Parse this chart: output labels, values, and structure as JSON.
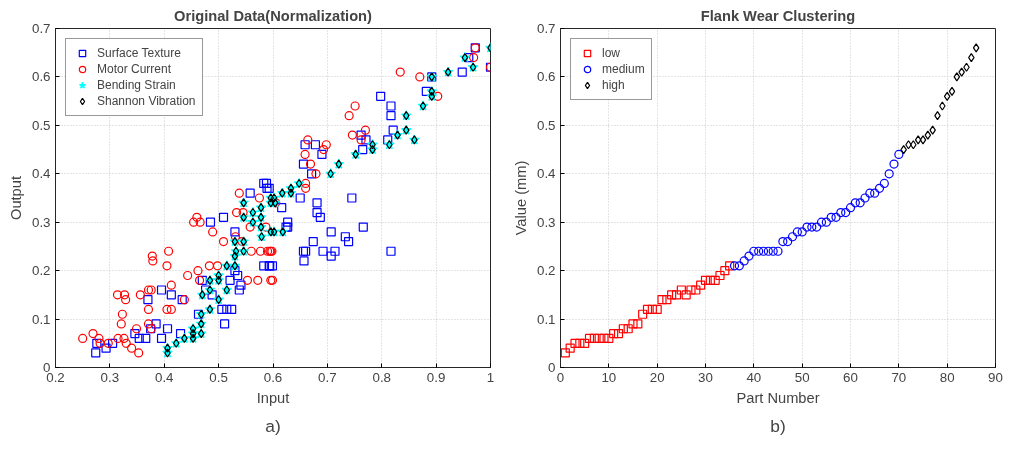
{
  "chart_data": [
    {
      "type": "scatter",
      "title": "Original Data(Normalization)",
      "xlabel": "Input",
      "ylabel": "Output",
      "annotations": [
        "a)"
      ],
      "xlim": [
        0.2,
        1
      ],
      "ylim": [
        0,
        0.7
      ],
      "xticks": [
        0.2,
        0.3,
        0.4,
        0.5,
        0.6,
        0.7,
        0.8,
        0.9,
        1
      ],
      "yticks": [
        0,
        0.1,
        0.2,
        0.3,
        0.4,
        0.5,
        0.6,
        0.7
      ],
      "grid": true,
      "legend": "top left",
      "series": [
        {
          "name": "Surface Texture",
          "color": "#0000ff",
          "marker": "square",
          "x": [
            0.274,
            0.276,
            0.293,
            0.305,
            0.346,
            0.354,
            0.366,
            0.37,
            0.385,
            0.375,
            0.395,
            0.395,
            0.406,
            0.413,
            0.43,
            0.433,
            0.463,
            0.47,
            0.476,
            0.485,
            0.488,
            0.509,
            0.506,
            0.515,
            0.524,
            0.511,
            0.521,
            0.535,
            0.538,
            0.541,
            0.53,
            0.53,
            0.558,
            0.583,
            0.589,
            0.583,
            0.594,
            0.588,
            0.593,
            0.616,
            0.627,
            0.627,
            0.624,
            0.599,
            0.593,
            0.659,
            0.678,
            0.656,
            0.671,
            0.69,
            0.65,
            0.681,
            0.681,
            0.687,
            0.707,
            0.674,
            0.656,
            0.66,
            0.657,
            0.692,
            0.707,
            0.714,
            0.733,
            0.739,
            0.745,
            0.766,
            0.762,
            0.771,
            0.765,
            0.798,
            0.817,
            0.817,
            0.821,
            0.811,
            0.817,
            0.882,
            0.892,
            0.948,
            0.972,
            0.96,
            1.0
          ],
          "values": [
            0.03,
            0.05,
            0.04,
            0.05,
            0.07,
            0.06,
            0.06,
            0.14,
            0.09,
            0.08,
            0.06,
            0.16,
            0.08,
            0.15,
            0.07,
            0.14,
            0.11,
            0.18,
            0.16,
            0.3,
            0.15,
            0.31,
            0.12,
            0.12,
            0.12,
            0.09,
            0.18,
            0.19,
            0.16,
            0.17,
            0.28,
            0.2,
            0.36,
            0.38,
            0.37,
            0.21,
            0.21,
            0.38,
            0.37,
            0.33,
            0.3,
            0.29,
            0.29,
            0.21,
            0.21,
            0.46,
            0.46,
            0.42,
            0.4,
            0.44,
            0.35,
            0.34,
            0.32,
            0.31,
            0.28,
            0.26,
            0.24,
            0.24,
            0.22,
            0.24,
            0.23,
            0.24,
            0.27,
            0.26,
            0.35,
            0.29,
            0.48,
            0.47,
            0.45,
            0.56,
            0.54,
            0.52,
            0.49,
            0.47,
            0.24,
            0.57,
            0.6,
            0.61,
            0.66,
            0.64,
            0.62
          ]
        },
        {
          "name": "Motor Current",
          "color": "#ff0000",
          "marker": "circle",
          "x": [
            0.25,
            0.269,
            0.28,
            0.282,
            0.297,
            0.315,
            0.314,
            0.327,
            0.329,
            0.323,
            0.321,
            0.326,
            0.33,
            0.34,
            0.349,
            0.353,
            0.356,
            0.371,
            0.376,
            0.371,
            0.371,
            0.376,
            0.378,
            0.379,
            0.405,
            0.408,
            0.413,
            0.405,
            0.413,
            0.437,
            0.443,
            0.454,
            0.46,
            0.466,
            0.462,
            0.465,
            0.483,
            0.498,
            0.489,
            0.509,
            0.531,
            0.538,
            0.533,
            0.545,
            0.553,
            0.543,
            0.56,
            0.577,
            0.59,
            0.596,
            0.572,
            0.596,
            0.575,
            0.558,
            0.587,
            0.599,
            0.594,
            0.598,
            0.605,
            0.66,
            0.66,
            0.664,
            0.659,
            0.669,
            0.679,
            0.693,
            0.698,
            0.74,
            0.751,
            0.746,
            0.762,
            0.77,
            0.834,
            0.87,
            0.903,
            0.969,
            0.972,
            1.0
          ],
          "values": [
            0.06,
            0.07,
            0.06,
            0.05,
            0.05,
            0.06,
            0.15,
            0.15,
            0.14,
            0.11,
            0.09,
            0.06,
            0.05,
            0.04,
            0.08,
            0.03,
            0.15,
            0.16,
            0.16,
            0.12,
            0.09,
            0.08,
            0.23,
            0.22,
            0.21,
            0.24,
            0.17,
            0.12,
            0.12,
            0.14,
            0.19,
            0.3,
            0.31,
            0.3,
            0.2,
            0.18,
            0.21,
            0.21,
            0.28,
            0.26,
            0.27,
            0.36,
            0.32,
            0.32,
            0.18,
            0.26,
            0.24,
            0.24,
            0.24,
            0.24,
            0.18,
            0.18,
            0.35,
            0.29,
            0.29,
            0.18,
            0.24,
            0.24,
            0.34,
            0.38,
            0.37,
            0.47,
            0.44,
            0.42,
            0.4,
            0.45,
            0.46,
            0.52,
            0.54,
            0.48,
            0.47,
            0.49,
            0.61,
            0.6,
            0.56,
            0.64,
            0.66,
            0.62
          ]
        },
        {
          "name": "Bending Strain",
          "color": "#00ffff",
          "marker": "star",
          "x": [
            0.406,
            0.406,
            0.422,
            0.437,
            0.453,
            0.453,
            0.453,
            0.468,
            0.468,
            0.468,
            0.47,
            0.484,
            0.484,
            0.484,
            0.5,
            0.5,
            0.5,
            0.515,
            0.515,
            0.53,
            0.53,
            0.532,
            0.53,
            0.546,
            0.546,
            0.546,
            0.546,
            0.563,
            0.563,
            0.578,
            0.578,
            0.578,
            0.579,
            0.596,
            0.596,
            0.596,
            0.602,
            0.604,
            0.617,
            0.633,
            0.633,
            0.602,
            0.618,
            0.648,
            0.706,
            0.721,
            0.752,
            0.783,
            0.783,
            0.814,
            0.829,
            0.845,
            0.845,
            0.86,
            0.876,
            0.892,
            0.892,
            0.892,
            0.922,
            0.953,
            0.968,
            1.0
          ],
          "values": [
            0.03,
            0.04,
            0.05,
            0.06,
            0.06,
            0.07,
            0.08,
            0.07,
            0.09,
            0.11,
            0.15,
            0.12,
            0.16,
            0.18,
            0.14,
            0.18,
            0.19,
            0.16,
            0.21,
            0.21,
            0.23,
            0.24,
            0.26,
            0.24,
            0.26,
            0.34,
            0.31,
            0.32,
            0.3,
            0.33,
            0.31,
            0.29,
            0.27,
            0.34,
            0.35,
            0.28,
            0.35,
            0.34,
            0.36,
            0.37,
            0.36,
            0.28,
            0.28,
            0.38,
            0.4,
            0.42,
            0.44,
            0.46,
            0.45,
            0.46,
            0.48,
            0.49,
            0.52,
            0.47,
            0.54,
            0.57,
            0.56,
            0.6,
            0.61,
            0.64,
            0.62,
            0.66
          ]
        },
        {
          "name": "Shannon Vibration",
          "color": "#000000",
          "marker": "diamond",
          "x": [
            0.406,
            0.406,
            0.422,
            0.437,
            0.453,
            0.453,
            0.453,
            0.468,
            0.468,
            0.468,
            0.47,
            0.484,
            0.484,
            0.484,
            0.5,
            0.5,
            0.5,
            0.515,
            0.515,
            0.53,
            0.53,
            0.532,
            0.53,
            0.546,
            0.546,
            0.546,
            0.546,
            0.563,
            0.563,
            0.578,
            0.578,
            0.578,
            0.579,
            0.596,
            0.596,
            0.596,
            0.602,
            0.604,
            0.617,
            0.633,
            0.633,
            0.602,
            0.618,
            0.648,
            0.706,
            0.721,
            0.752,
            0.783,
            0.783,
            0.814,
            0.829,
            0.845,
            0.845,
            0.86,
            0.876,
            0.892,
            0.892,
            0.892,
            0.922,
            0.953,
            0.968,
            1.0
          ],
          "values": [
            0.03,
            0.04,
            0.05,
            0.06,
            0.06,
            0.07,
            0.08,
            0.07,
            0.09,
            0.11,
            0.15,
            0.12,
            0.16,
            0.18,
            0.14,
            0.18,
            0.19,
            0.16,
            0.21,
            0.21,
            0.23,
            0.24,
            0.26,
            0.24,
            0.26,
            0.34,
            0.31,
            0.32,
            0.3,
            0.33,
            0.31,
            0.29,
            0.27,
            0.34,
            0.35,
            0.28,
            0.35,
            0.34,
            0.36,
            0.37,
            0.36,
            0.28,
            0.28,
            0.38,
            0.4,
            0.42,
            0.44,
            0.46,
            0.45,
            0.46,
            0.48,
            0.49,
            0.52,
            0.47,
            0.54,
            0.57,
            0.56,
            0.6,
            0.61,
            0.64,
            0.62,
            0.66
          ]
        }
      ]
    },
    {
      "type": "scatter",
      "title": "Flank Wear Clustering",
      "xlabel": "Part Number",
      "ylabel": "Value (mm)",
      "annotations": [
        "b)"
      ],
      "xlim": [
        0,
        90
      ],
      "ylim": [
        0,
        0.7
      ],
      "xticks": [
        0,
        10,
        20,
        30,
        40,
        50,
        60,
        70,
        80,
        90
      ],
      "yticks": [
        0,
        0.1,
        0.2,
        0.3,
        0.4,
        0.5,
        0.6,
        0.7
      ],
      "grid": true,
      "legend": "top left",
      "series": [
        {
          "name": "low",
          "color": "#ff0000",
          "marker": "square",
          "x": [
            1,
            2,
            3,
            4,
            5,
            6,
            7,
            8,
            9,
            10,
            11,
            12,
            13,
            14,
            15,
            16,
            17,
            18,
            19,
            20,
            21,
            22,
            23,
            24,
            25,
            26,
            27,
            28,
            29,
            30,
            31,
            32,
            33,
            34,
            35
          ],
          "values": [
            0.03,
            0.04,
            0.05,
            0.05,
            0.05,
            0.06,
            0.06,
            0.06,
            0.06,
            0.06,
            0.07,
            0.07,
            0.08,
            0.08,
            0.09,
            0.09,
            0.11,
            0.12,
            0.12,
            0.12,
            0.14,
            0.14,
            0.15,
            0.15,
            0.16,
            0.15,
            0.16,
            0.16,
            0.17,
            0.18,
            0.18,
            0.18,
            0.19,
            0.2,
            0.21
          ]
        },
        {
          "name": "medium",
          "color": "#0000ff",
          "marker": "circle",
          "x": [
            36,
            37,
            38,
            39,
            40,
            41,
            42,
            43,
            44,
            45,
            46,
            47,
            48,
            49,
            50,
            51,
            52,
            53,
            54,
            55,
            56,
            57,
            58,
            59,
            60,
            61,
            62,
            63,
            64,
            65,
            66,
            67,
            68,
            69,
            70
          ],
          "values": [
            0.21,
            0.21,
            0.22,
            0.23,
            0.24,
            0.24,
            0.24,
            0.24,
            0.24,
            0.24,
            0.26,
            0.26,
            0.27,
            0.28,
            0.28,
            0.29,
            0.29,
            0.29,
            0.3,
            0.3,
            0.31,
            0.31,
            0.32,
            0.32,
            0.33,
            0.34,
            0.34,
            0.35,
            0.36,
            0.36,
            0.37,
            0.38,
            0.4,
            0.42,
            0.44
          ]
        },
        {
          "name": "high",
          "color": "#000000",
          "marker": "diamond",
          "x": [
            71,
            72,
            73,
            74,
            75,
            76,
            77,
            78,
            79,
            80,
            81,
            82,
            83,
            84,
            85,
            86
          ],
          "values": [
            0.45,
            0.46,
            0.46,
            0.47,
            0.47,
            0.48,
            0.49,
            0.52,
            0.54,
            0.56,
            0.57,
            0.6,
            0.61,
            0.62,
            0.64,
            0.66
          ]
        }
      ]
    }
  ]
}
